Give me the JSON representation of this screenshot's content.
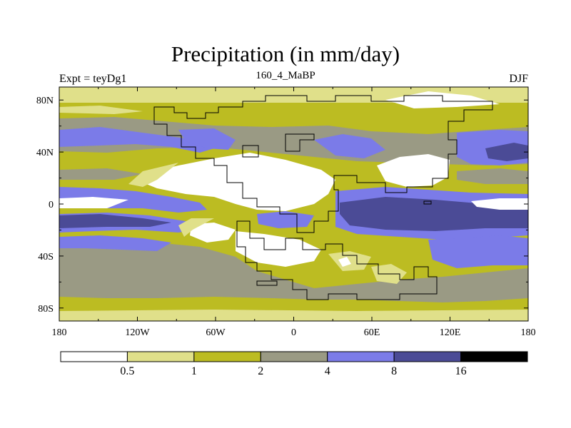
{
  "chart_data": {
    "type": "heatmap",
    "title": "Precipitation (in mm/day)",
    "left_label": "Expt = teyDg1",
    "center_label": "160_4_MaBP",
    "right_label": "DJF",
    "x_ticks": [
      "180",
      "120W",
      "60W",
      "0",
      "60E",
      "120E",
      "180"
    ],
    "x_values": [
      -180,
      -120,
      -60,
      0,
      60,
      120,
      180
    ],
    "y_ticks": [
      "80N",
      "40N",
      "0",
      "40S",
      "80S"
    ],
    "y_values": [
      80,
      40,
      0,
      -40,
      -80
    ],
    "xlim": [
      -180,
      180
    ],
    "ylim": [
      -90,
      90
    ],
    "colorbar": {
      "labels": [
        "0.5",
        "1",
        "2",
        "4",
        "8",
        "16"
      ],
      "colors": [
        "#ffffff",
        "#e0e08a",
        "#bcbc22",
        "#9a9a84",
        "#7b7be8",
        "#4b4b96",
        "#000000"
      ]
    },
    "colors": {
      "c0": "#ffffff",
      "c1": "#e0e08a",
      "c2": "#bcbc22",
      "c3": "#9a9a84",
      "c4": "#7b7be8",
      "c5": "#4b4b96",
      "c6": "#000000"
    }
  }
}
